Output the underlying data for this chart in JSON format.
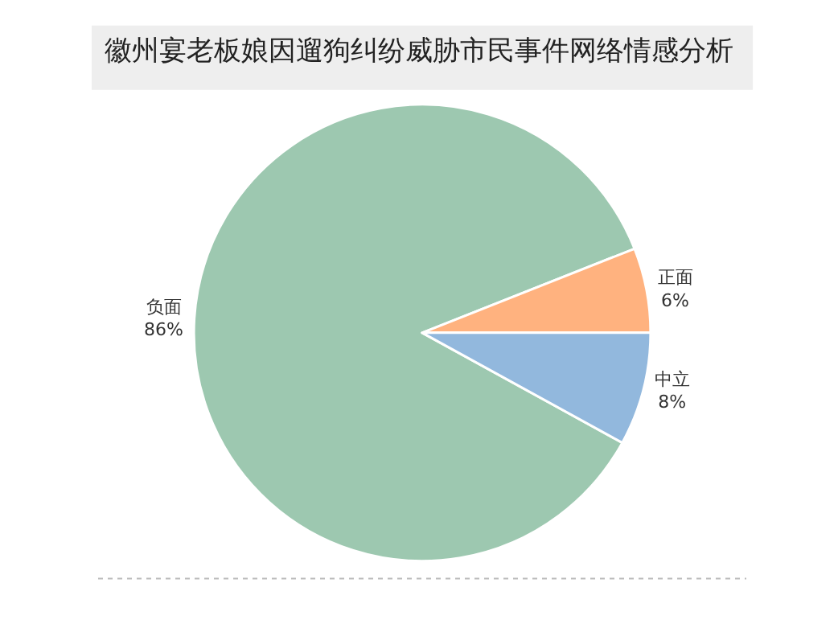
{
  "chart_data": {
    "type": "pie",
    "title": "徽州宴老板娘因遛狗纠纷威胁市民事件网络情感分析",
    "categories": [
      "负面",
      "正面",
      "中立"
    ],
    "values": [
      86,
      6,
      8
    ],
    "value_labels": [
      "86%",
      "6%",
      "8%"
    ],
    "colors": [
      "#9dc8b0",
      "#ffb27f",
      "#92b8dd"
    ],
    "legend": false
  }
}
